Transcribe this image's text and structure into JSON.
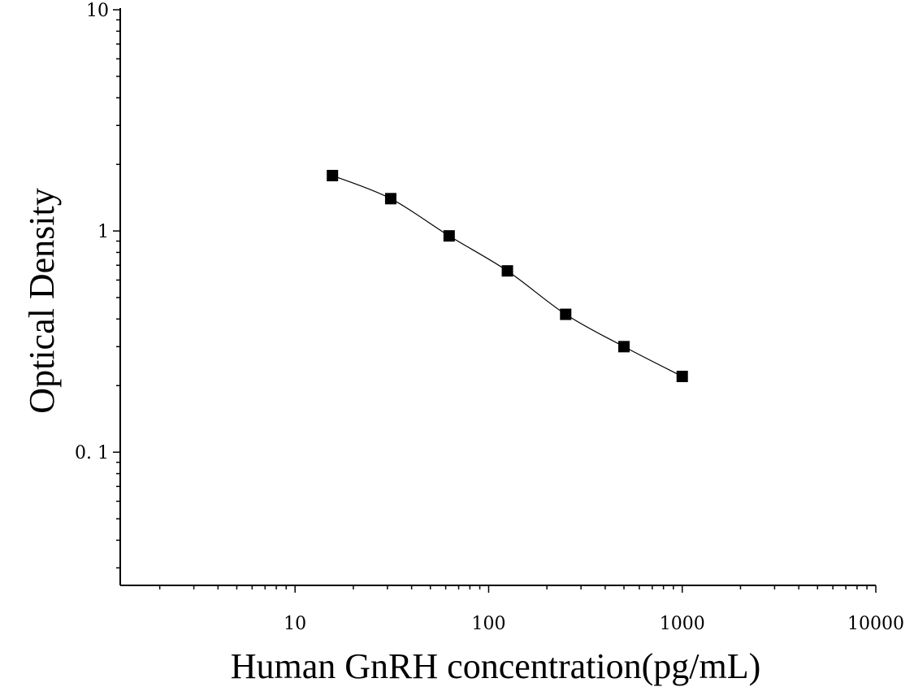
{
  "chart_data": {
    "type": "scatter",
    "title": "",
    "xlabel": "Human GnRH concentration(pg/mL)",
    "ylabel": "Optical Density",
    "x_scale": "log",
    "y_scale": "log",
    "xlim": [
      1.25,
      10000
    ],
    "ylim": [
      0.025,
      10
    ],
    "x_tick_labels": [
      "10",
      "100",
      "1000",
      "10000"
    ],
    "x_tick_values": [
      10,
      100,
      1000,
      10000
    ],
    "y_tick_labels": [
      "10",
      "1",
      "0. 1"
    ],
    "y_tick_values": [
      10,
      1,
      0.1
    ],
    "grid": false,
    "legend": "none",
    "series": [
      {
        "marker": "square",
        "color": "#000000",
        "fit_curve": true,
        "x": [
          15.6,
          31.2,
          62.5,
          125,
          250,
          500,
          1000
        ],
        "y": [
          1.78,
          1.4,
          0.95,
          0.66,
          0.42,
          0.3,
          0.22
        ]
      }
    ]
  }
}
